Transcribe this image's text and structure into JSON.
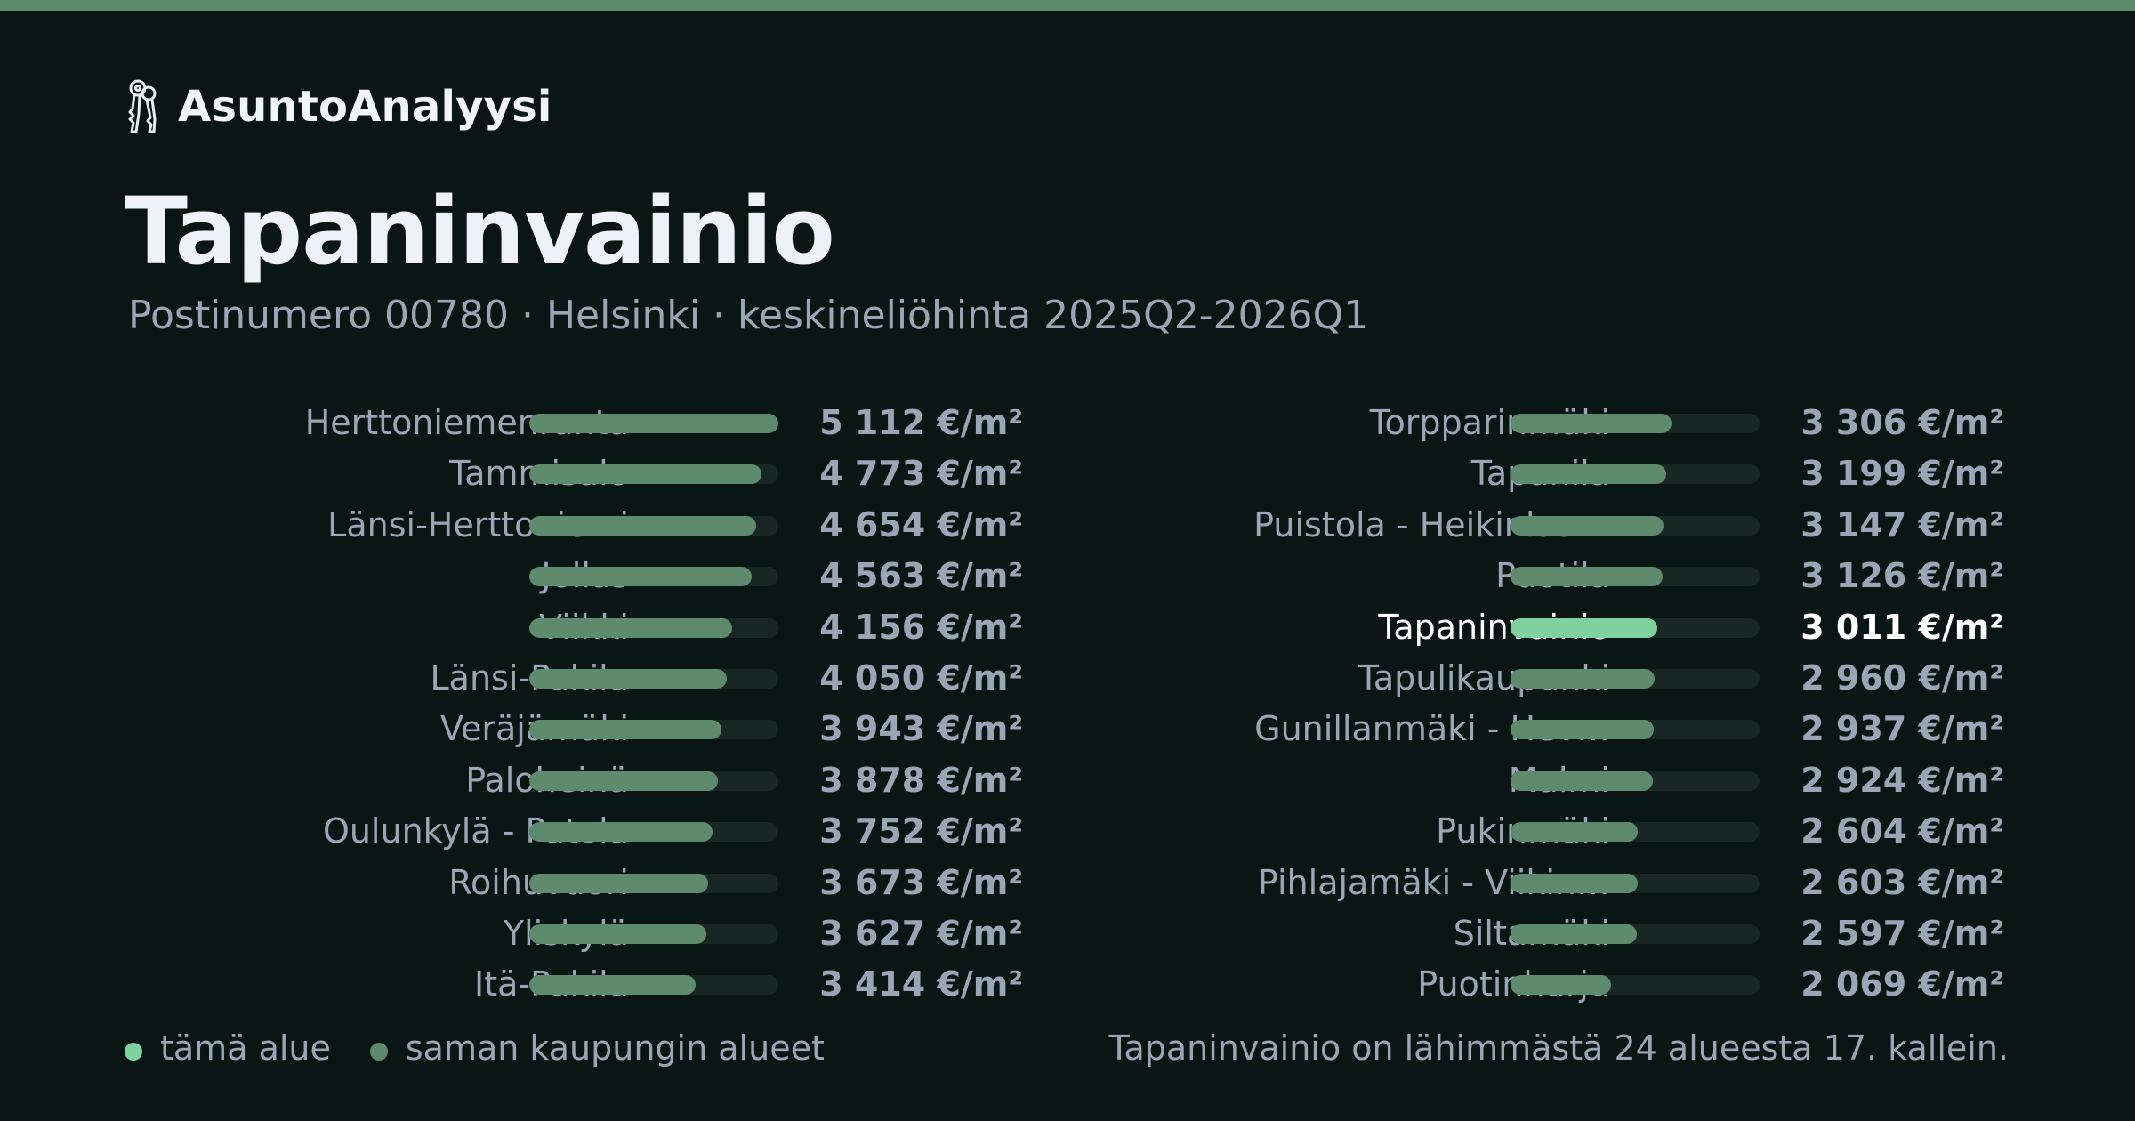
{
  "brand": {
    "name": "AsuntoAnalyysi",
    "icon": "keys-icon"
  },
  "page": {
    "title": "Tapaninvainio",
    "subtitle": "Postinumero 00780 · Helsinki · keskineliöhinta 2025Q2-2026Q1"
  },
  "colors": {
    "stripe": "#5e8a6d",
    "bar": "#5e8a6d",
    "highlight_bar": "#7fd1a0",
    "track": "#182723",
    "background": "#0a1614"
  },
  "chart_data": {
    "type": "bar",
    "orientation": "horizontal",
    "unit": "€/m²",
    "value_max": 5112,
    "highlight": "Tapaninvainio",
    "columns": [
      {
        "rows": [
          {
            "name": "Herttoniemenranta",
            "value": 5112,
            "label": "5 112 €/m²"
          },
          {
            "name": "Tammisalo",
            "value": 4773,
            "label": "4 773 €/m²"
          },
          {
            "name": "Länsi-Herttoniemi",
            "value": 4654,
            "label": "4 654 €/m²"
          },
          {
            "name": "Jollas",
            "value": 4563,
            "label": "4 563 €/m²"
          },
          {
            "name": "Viikki",
            "value": 4156,
            "label": "4 156 €/m²"
          },
          {
            "name": "Länsi-Pakila",
            "value": 4050,
            "label": "4 050 €/m²"
          },
          {
            "name": "Veräjämäki",
            "value": 3943,
            "label": "3 943 €/m²"
          },
          {
            "name": "Paloheinä",
            "value": 3878,
            "label": "3 878 €/m²"
          },
          {
            "name": "Oulunkylä - Patola",
            "value": 3752,
            "label": "3 752 €/m²"
          },
          {
            "name": "Roihuvuori",
            "value": 3673,
            "label": "3 673 €/m²"
          },
          {
            "name": "Yliskylä",
            "value": 3627,
            "label": "3 627 €/m²"
          },
          {
            "name": "Itä-Pakila",
            "value": 3414,
            "label": "3 414 €/m²"
          }
        ]
      },
      {
        "rows": [
          {
            "name": "Torpparinmäki",
            "value": 3306,
            "label": "3 306 €/m²"
          },
          {
            "name": "Tapanila",
            "value": 3199,
            "label": "3 199 €/m²"
          },
          {
            "name": "Puistola - Heikinlaa…",
            "value": 3147,
            "label": "3 147 €/m²"
          },
          {
            "name": "Puotila",
            "value": 3126,
            "label": "3 126 €/m²"
          },
          {
            "name": "Tapaninvainio",
            "value": 3011,
            "label": "3 011 €/m²"
          },
          {
            "name": "Tapulikaupunki",
            "value": 2960,
            "label": "2 960 €/m²"
          },
          {
            "name": "Gunillanmäki - Hev…",
            "value": 2937,
            "label": "2 937 €/m²"
          },
          {
            "name": "Malmi",
            "value": 2924,
            "label": "2 924 €/m²"
          },
          {
            "name": "Pukinmäki",
            "value": 2604,
            "label": "2 604 €/m²"
          },
          {
            "name": "Pihlajamäki - Viikin…",
            "value": 2603,
            "label": "2 603 €/m²"
          },
          {
            "name": "Siltamäki",
            "value": 2597,
            "label": "2 597 €/m²"
          },
          {
            "name": "Puotinharju",
            "value": 2069,
            "label": "2 069 €/m²"
          }
        ]
      }
    ],
    "legend": [
      {
        "label": "tämä alue",
        "color": "#7fd1a0"
      },
      {
        "label": "saman kaupungin alueet",
        "color": "#5e8a6d"
      }
    ],
    "footnote": "Tapaninvainio on lähimmästä 24 alueesta 17. kallein."
  }
}
